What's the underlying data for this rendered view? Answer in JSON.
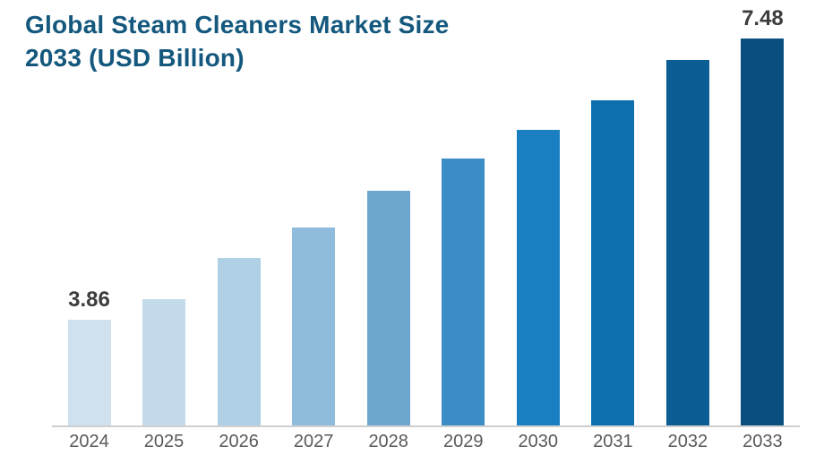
{
  "title": {
    "line1": "Global Steam Cleaners Market Size",
    "line2": "2033 (USD Billion)"
  },
  "chart_data": {
    "type": "bar",
    "title": "Global Steam Cleaners Market Size 2033 (USD Billion)",
    "categories": [
      "2024",
      "2025",
      "2026",
      "2027",
      "2028",
      "2029",
      "2030",
      "2031",
      "2032",
      "2033"
    ],
    "values": [
      3.86,
      4.12,
      4.65,
      5.05,
      5.52,
      5.93,
      6.3,
      6.68,
      7.2,
      7.48
    ],
    "data_labels": [
      "3.86",
      "",
      "",
      "",
      "",
      "",
      "",
      "",
      "",
      "7.48"
    ],
    "bar_colors": [
      "#cfe0ee",
      "#c4dbec",
      "#b0d0e6",
      "#8fbcdc",
      "#6ea7cd",
      "#3c8dc5",
      "#1a7fc1",
      "#0d6fae",
      "#0c5d93",
      "#0a4e7f"
    ],
    "xlabel": "",
    "ylabel": "",
    "ylim": [
      2.5,
      7.48
    ],
    "grid": false,
    "legend": false
  },
  "colors": {
    "title": "#14587e",
    "data_label": "#3d3d3d",
    "tick_label": "#595959",
    "axis_line": "#cfcfcf",
    "background": "#ffffff"
  }
}
